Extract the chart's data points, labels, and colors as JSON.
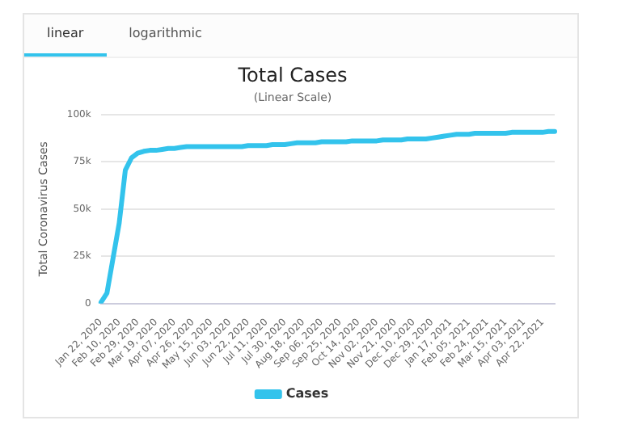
{
  "chart_data": {
    "type": "line",
    "title": "Total Cases",
    "subtitle": "(Linear Scale)",
    "ylabel": "Total Coronavirus Cases",
    "annotations": [
      "linear",
      "logarithmic"
    ],
    "categories": [
      "Jan 22, 2020",
      null,
      null,
      "Feb 10, 2020",
      null,
      null,
      "Feb 29, 2020",
      null,
      null,
      "Mar 19, 2020",
      null,
      null,
      "Apr 07, 2020",
      null,
      null,
      "Apr 26, 2020",
      null,
      null,
      "May 15, 2020",
      null,
      null,
      "Jun 03, 2020",
      null,
      null,
      "Jun 22, 2020",
      null,
      null,
      "Jul 11, 2020",
      null,
      null,
      "Jul 30, 2020",
      null,
      null,
      "Aug 18, 2020",
      null,
      null,
      "Sep 06, 2020",
      null,
      null,
      "Sep 25, 2020",
      null,
      null,
      "Oct 14, 2020",
      null,
      null,
      "Nov 02, 2020",
      null,
      null,
      "Nov 21, 2020",
      null,
      null,
      "Dec 10, 2020",
      null,
      null,
      "Dec 29, 2020",
      null,
      null,
      "Jan 17, 2021",
      null,
      null,
      "Feb 05, 2021",
      null,
      null,
      "Feb 24, 2021",
      null,
      null,
      "Mar 15, 2021",
      null,
      null,
      "Apr 03, 2021",
      null,
      null,
      "Apr 22, 2021",
      null,
      null
    ],
    "series": [
      {
        "name": "Cases",
        "color": "#33c3ec",
        "values": [
          500,
          5500,
          24000,
          42500,
          70500,
          77000,
          79500,
          80500,
          81000,
          81000,
          81500,
          82000,
          82000,
          82500,
          83000,
          83000,
          83000,
          83000,
          83000,
          83000,
          83000,
          83000,
          83000,
          83000,
          83500,
          83500,
          83500,
          83500,
          84000,
          84000,
          84000,
          84500,
          85000,
          85000,
          85000,
          85000,
          85500,
          85500,
          85500,
          85500,
          85500,
          86000,
          86000,
          86000,
          86000,
          86000,
          86500,
          86500,
          86500,
          86500,
          87000,
          87000,
          87000,
          87000,
          87500,
          88000,
          88500,
          89000,
          89500,
          89500,
          89500,
          90000,
          90000,
          90000,
          90000,
          90000,
          90000,
          90500,
          90500,
          90500,
          90500,
          90500,
          90500,
          91000,
          91000
        ]
      }
    ],
    "ylim": [
      0,
      100000
    ],
    "yticks": [
      0,
      {
        "value": 25000,
        "label": "25k"
      },
      {
        "value": 50000,
        "label": "50k"
      },
      {
        "value": 75000,
        "label": "75k"
      },
      {
        "value": 100000,
        "label": "100k"
      }
    ],
    "grid": "y",
    "legend": "bottom",
    "marker": "none",
    "line_style": "solid"
  }
}
